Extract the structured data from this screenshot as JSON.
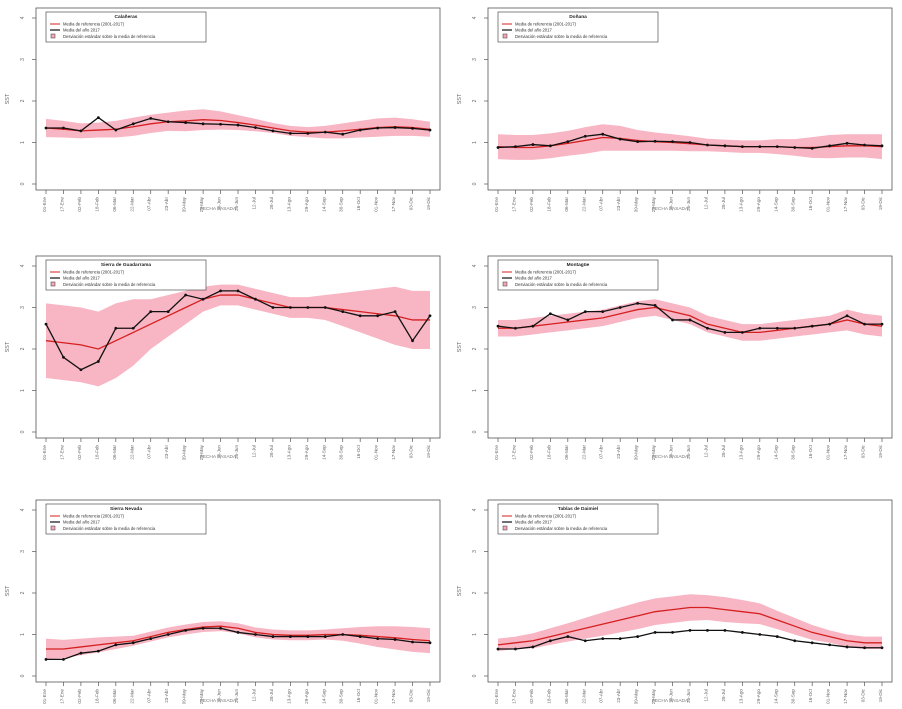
{
  "legend_labels": {
    "reference": "Media de referencia (2001-2017)",
    "year": "Media del año 2017",
    "deviation": "Desviación estándar sobre la media de referencia"
  },
  "colors": {
    "reference_line": "#d42020",
    "band": "#f7a8b8",
    "year_line": "#111111",
    "frame": "#555555"
  },
  "xlabel": "FECHA PASADA",
  "chart_data": [
    {
      "type": "line",
      "title": "Calañeras",
      "ylabel": "SST",
      "ylim": [
        0,
        4
      ],
      "y_ticks": [
        0,
        1,
        2,
        3,
        4
      ],
      "x_ticks": [
        "01-Ene",
        "17-Ene",
        "02-Feb",
        "18-Feb",
        "06-Mar",
        "22-Mar",
        "07-Abr",
        "23-Abr",
        "09-May",
        "25-May",
        "10-Jun",
        "26-Jun",
        "12-Jul",
        "28-Jul",
        "13-Ago",
        "29-Ago",
        "14-Sep",
        "30-Sep",
        "16-Oct",
        "01-Nov",
        "17-Nov",
        "03-Dic",
        "19-Dic"
      ],
      "series": [
        {
          "name": "Media de referencia (2001-2017)",
          "values": [
            1.35,
            1.32,
            1.28,
            1.3,
            1.32,
            1.38,
            1.45,
            1.5,
            1.52,
            1.55,
            1.53,
            1.48,
            1.42,
            1.35,
            1.28,
            1.25,
            1.25,
            1.28,
            1.32,
            1.36,
            1.38,
            1.36,
            1.32
          ]
        },
        {
          "name": "Media del año 2017",
          "values": [
            1.35,
            1.35,
            1.28,
            1.6,
            1.3,
            1.45,
            1.58,
            1.5,
            1.48,
            1.45,
            1.44,
            1.42,
            1.36,
            1.28,
            1.22,
            1.22,
            1.25,
            1.2,
            1.3,
            1.35,
            1.36,
            1.34,
            1.3
          ]
        }
      ],
      "std_dev": [
        0.22,
        0.2,
        0.18,
        0.18,
        0.2,
        0.22,
        0.22,
        0.22,
        0.25,
        0.25,
        0.22,
        0.18,
        0.15,
        0.12,
        0.12,
        0.12,
        0.15,
        0.18,
        0.2,
        0.22,
        0.22,
        0.2,
        0.18
      ]
    },
    {
      "type": "line",
      "title": "Doñana",
      "ylabel": "SST",
      "ylim": [
        0,
        4
      ],
      "y_ticks": [
        0,
        1,
        2,
        3,
        4
      ],
      "x_ticks": [
        "01-Ene",
        "17-Ene",
        "02-Feb",
        "18-Feb",
        "06-Mar",
        "22-Mar",
        "07-Abr",
        "23-Abr",
        "09-May",
        "25-May",
        "10-Jun",
        "26-Jun",
        "12-Jul",
        "28-Jul",
        "13-Ago",
        "29-Ago",
        "14-Sep",
        "30-Sep",
        "16-Oct",
        "01-Nov",
        "17-Nov",
        "03-Dic",
        "19-Dic"
      ],
      "series": [
        {
          "name": "Media de referencia (2001-2017)",
          "values": [
            0.9,
            0.88,
            0.88,
            0.92,
            0.98,
            1.05,
            1.12,
            1.1,
            1.05,
            1.02,
            1.0,
            0.97,
            0.94,
            0.92,
            0.9,
            0.9,
            0.9,
            0.88,
            0.88,
            0.9,
            0.92,
            0.92,
            0.9
          ]
        },
        {
          "name": "Media del año 2017",
          "values": [
            0.88,
            0.9,
            0.95,
            0.92,
            1.02,
            1.15,
            1.2,
            1.08,
            1.02,
            1.03,
            1.02,
            1.0,
            0.94,
            0.92,
            0.9,
            0.9,
            0.9,
            0.88,
            0.86,
            0.92,
            0.98,
            0.94,
            0.92
          ]
        }
      ],
      "std_dev": [
        0.3,
        0.3,
        0.3,
        0.3,
        0.3,
        0.32,
        0.32,
        0.3,
        0.25,
        0.22,
        0.2,
        0.18,
        0.15,
        0.15,
        0.15,
        0.15,
        0.18,
        0.2,
        0.25,
        0.28,
        0.28,
        0.28,
        0.3
      ]
    },
    {
      "type": "line",
      "title": "Sierra de Guadarrama",
      "ylabel": "SST",
      "ylim": [
        0,
        4
      ],
      "y_ticks": [
        0,
        1,
        2,
        3,
        4
      ],
      "x_ticks": [
        "01-Ene",
        "17-Ene",
        "02-Feb",
        "18-Feb",
        "06-Mar",
        "22-Mar",
        "07-Abr",
        "23-Abr",
        "09-May",
        "25-May",
        "10-Jun",
        "26-Jun",
        "12-Jul",
        "28-Jul",
        "13-Ago",
        "29-Ago",
        "14-Sep",
        "30-Sep",
        "16-Oct",
        "01-Nov",
        "17-Nov",
        "03-Dic",
        "19-Dic"
      ],
      "series": [
        {
          "name": "Media de referencia (2001-2017)",
          "values": [
            2.2,
            2.15,
            2.1,
            2.0,
            2.2,
            2.4,
            2.6,
            2.8,
            3.0,
            3.2,
            3.3,
            3.3,
            3.2,
            3.1,
            3.0,
            3.0,
            3.0,
            2.95,
            2.9,
            2.85,
            2.8,
            2.7,
            2.7
          ]
        },
        {
          "name": "Media del año 2017",
          "values": [
            2.6,
            1.8,
            1.5,
            1.7,
            2.5,
            2.5,
            2.9,
            2.9,
            3.3,
            3.2,
            3.4,
            3.4,
            3.2,
            3.0,
            3.0,
            3.0,
            3.0,
            2.9,
            2.8,
            2.8,
            2.9,
            2.2,
            2.8
          ]
        }
      ],
      "std_dev": [
        0.9,
        0.9,
        0.9,
        0.9,
        0.9,
        0.8,
        0.6,
        0.5,
        0.4,
        0.3,
        0.25,
        0.25,
        0.25,
        0.25,
        0.25,
        0.25,
        0.3,
        0.4,
        0.5,
        0.6,
        0.7,
        0.7,
        0.7
      ]
    },
    {
      "type": "line",
      "title": "Montagüe",
      "ylabel": "SST",
      "ylim": [
        0,
        4
      ],
      "y_ticks": [
        0,
        1,
        2,
        3,
        4
      ],
      "x_ticks": [
        "01-Ene",
        "17-Ene",
        "02-Feb",
        "18-Feb",
        "06-Mar",
        "22-Mar",
        "07-Abr",
        "23-Abr",
        "09-May",
        "25-May",
        "10-Jun",
        "26-Jun",
        "12-Jul",
        "28-Jul",
        "13-Ago",
        "29-Ago",
        "14-Sep",
        "30-Sep",
        "16-Oct",
        "01-Nov",
        "17-Nov",
        "03-Dic",
        "19-Dic"
      ],
      "series": [
        {
          "name": "Media de referencia (2001-2017)",
          "values": [
            2.5,
            2.5,
            2.55,
            2.6,
            2.65,
            2.7,
            2.75,
            2.85,
            2.95,
            3.0,
            2.9,
            2.8,
            2.6,
            2.5,
            2.4,
            2.4,
            2.45,
            2.5,
            2.55,
            2.6,
            2.7,
            2.6,
            2.55
          ]
        },
        {
          "name": "Media del año 2017",
          "values": [
            2.55,
            2.5,
            2.55,
            2.85,
            2.7,
            2.9,
            2.9,
            3.0,
            3.1,
            3.05,
            2.7,
            2.7,
            2.5,
            2.4,
            2.4,
            2.5,
            2.5,
            2.5,
            2.55,
            2.6,
            2.8,
            2.6,
            2.6
          ]
        }
      ],
      "std_dev": [
        0.2,
        0.2,
        0.2,
        0.2,
        0.2,
        0.2,
        0.2,
        0.2,
        0.2,
        0.2,
        0.2,
        0.2,
        0.2,
        0.2,
        0.2,
        0.2,
        0.2,
        0.2,
        0.2,
        0.2,
        0.25,
        0.25,
        0.25
      ]
    },
    {
      "type": "line",
      "title": "Sierra Nevada",
      "ylabel": "SST",
      "ylim": [
        0,
        4
      ],
      "y_ticks": [
        0,
        1,
        2,
        3,
        4
      ],
      "x_ticks": [
        "01-Ene",
        "17-Ene",
        "02-Feb",
        "18-Feb",
        "06-Mar",
        "22-Mar",
        "07-Abr",
        "23-Abr",
        "09-May",
        "25-May",
        "10-Jun",
        "26-Jun",
        "12-Jul",
        "28-Jul",
        "13-Ago",
        "29-Ago",
        "14-Sep",
        "30-Sep",
        "16-Oct",
        "01-Nov",
        "17-Nov",
        "03-Dic",
        "19-Dic"
      ],
      "series": [
        {
          "name": "Media de referencia (2001-2017)",
          "values": [
            0.65,
            0.65,
            0.7,
            0.75,
            0.8,
            0.85,
            0.95,
            1.05,
            1.12,
            1.18,
            1.2,
            1.15,
            1.05,
            1.0,
            0.98,
            0.98,
            1.0,
            1.0,
            0.98,
            0.95,
            0.92,
            0.88,
            0.85
          ]
        },
        {
          "name": "Media del año 2017",
          "values": [
            0.4,
            0.4,
            0.55,
            0.6,
            0.75,
            0.8,
            0.9,
            1.0,
            1.1,
            1.15,
            1.15,
            1.05,
            1.0,
            0.95,
            0.95,
            0.95,
            0.95,
            1.0,
            0.95,
            0.9,
            0.88,
            0.82,
            0.8
          ]
        }
      ],
      "std_dev": [
        0.25,
        0.22,
        0.2,
        0.18,
        0.15,
        0.12,
        0.12,
        0.12,
        0.12,
        0.12,
        0.12,
        0.12,
        0.12,
        0.12,
        0.12,
        0.12,
        0.12,
        0.15,
        0.2,
        0.25,
        0.28,
        0.3,
        0.3
      ]
    },
    {
      "type": "line",
      "title": "Tablas de Daimiel",
      "ylabel": "SST",
      "ylim": [
        0,
        4
      ],
      "y_ticks": [
        0,
        1,
        2,
        3,
        4
      ],
      "x_ticks": [
        "01-Ene",
        "17-Ene",
        "02-Feb",
        "18-Feb",
        "06-Mar",
        "22-Mar",
        "07-Abr",
        "23-Abr",
        "09-May",
        "25-May",
        "10-Jun",
        "26-Jun",
        "12-Jul",
        "28-Jul",
        "13-Ago",
        "29-Ago",
        "14-Sep",
        "30-Sep",
        "16-Oct",
        "01-Nov",
        "17-Nov",
        "03-Dic",
        "19-Dic"
      ],
      "series": [
        {
          "name": "Media de referencia (2001-2017)",
          "values": [
            0.75,
            0.8,
            0.85,
            0.95,
            1.05,
            1.15,
            1.25,
            1.35,
            1.45,
            1.55,
            1.6,
            1.65,
            1.65,
            1.6,
            1.55,
            1.5,
            1.35,
            1.2,
            1.05,
            0.95,
            0.85,
            0.8,
            0.8
          ]
        },
        {
          "name": "Media del año 2017",
          "values": [
            0.65,
            0.65,
            0.7,
            0.85,
            0.95,
            0.85,
            0.9,
            0.9,
            0.95,
            1.05,
            1.05,
            1.1,
            1.1,
            1.1,
            1.05,
            1.0,
            0.95,
            0.85,
            0.8,
            0.75,
            0.7,
            0.68,
            0.68
          ]
        }
      ],
      "std_dev": [
        0.15,
        0.15,
        0.18,
        0.2,
        0.22,
        0.25,
        0.28,
        0.3,
        0.32,
        0.32,
        0.32,
        0.32,
        0.3,
        0.3,
        0.28,
        0.25,
        0.22,
        0.2,
        0.18,
        0.15,
        0.15,
        0.15,
        0.15
      ]
    }
  ]
}
